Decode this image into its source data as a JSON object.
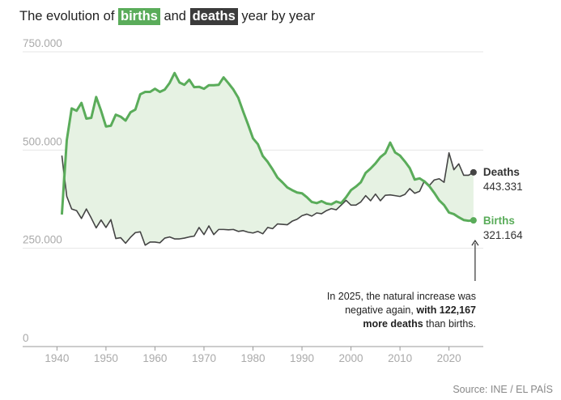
{
  "title": {
    "prefix": "The evolution of",
    "births_word": "births",
    "middle": "and",
    "deaths_word": "deaths",
    "suffix": "year by year"
  },
  "annotation": {
    "line1": "In 2025, the natural increase was",
    "line2_plain": "negative again,",
    "line2_bold": "with 122,167",
    "line3_bold": "more deaths",
    "line3_plain": "than births."
  },
  "source": "Source: INE / EL PAÍS",
  "colors": {
    "births": "#5aac5a",
    "deaths": "#444444",
    "fill": "#e6f2e3",
    "grid": "#e6e6e6",
    "axis": "#999999"
  },
  "chart_data": {
    "type": "line",
    "title": "The evolution of births and deaths year by year",
    "xlabel": "",
    "ylabel": "",
    "xlim": [
      1933,
      2027
    ],
    "ylim": [
      0,
      750000
    ],
    "y_ticks": [
      0,
      250000,
      500000,
      750000
    ],
    "y_tick_labels": [
      "0",
      "250.000",
      "500.000",
      "750.000"
    ],
    "x_ticks": [
      1940,
      1950,
      1960,
      1970,
      1980,
      1990,
      2000,
      2010,
      2020
    ],
    "x_tick_labels": [
      "1940",
      "1950",
      "1960",
      "1970",
      "1980",
      "1990",
      "2000",
      "2010",
      "2020"
    ],
    "x": [
      1941,
      1942,
      1943,
      1944,
      1945,
      1946,
      1947,
      1948,
      1949,
      1950,
      1951,
      1952,
      1953,
      1954,
      1955,
      1956,
      1957,
      1958,
      1959,
      1960,
      1961,
      1962,
      1963,
      1964,
      1965,
      1966,
      1967,
      1968,
      1969,
      1970,
      1971,
      1972,
      1973,
      1974,
      1975,
      1976,
      1977,
      1978,
      1979,
      1980,
      1981,
      1982,
      1983,
      1984,
      1985,
      1986,
      1987,
      1988,
      1989,
      1990,
      1991,
      1992,
      1993,
      1994,
      1995,
      1996,
      1997,
      1998,
      1999,
      2000,
      2001,
      2002,
      2003,
      2004,
      2005,
      2006,
      2007,
      2008,
      2009,
      2010,
      2011,
      2012,
      2013,
      2014,
      2015,
      2016,
      2017,
      2018,
      2019,
      2020,
      2021,
      2022,
      2023,
      2024,
      2025
    ],
    "series": [
      {
        "name": "Births",
        "last_label": "Births",
        "last_value_label": "321.164",
        "values": [
          336000,
          525000,
          606000,
          600000,
          620000,
          580000,
          582000,
          635000,
          600000,
          560000,
          562000,
          590000,
          585000,
          575000,
          596000,
          603000,
          642000,
          648000,
          648000,
          656000,
          648000,
          654000,
          671000,
          696000,
          672000,
          666000,
          679000,
          660000,
          661000,
          656000,
          665000,
          665000,
          666000,
          685000,
          670000,
          654000,
          633000,
          598000,
          565000,
          530000,
          515000,
          485000,
          470000,
          451000,
          430000,
          418000,
          405000,
          398000,
          392000,
          390000,
          380000,
          368000,
          365000,
          370000,
          364000,
          362000,
          369000,
          365000,
          380000,
          398000,
          407000,
          418000,
          442000,
          453000,
          466000,
          482000,
          492000,
          519000,
          494000,
          486000,
          471000,
          454000,
          425000,
          428000,
          420000,
          408000,
          391000,
          372000,
          360000,
          341000,
          337000,
          329000,
          322000,
          320000,
          321164
        ]
      },
      {
        "name": "Deaths",
        "last_label": "Deaths",
        "last_value_label": "443.331",
        "values": [
          486000,
          382000,
          350000,
          346000,
          326000,
          350000,
          327000,
          302000,
          322000,
          303000,
          323000,
          275000,
          277000,
          263000,
          278000,
          290000,
          292000,
          258000,
          266000,
          266000,
          264000,
          276000,
          279000,
          274000,
          274000,
          276000,
          279000,
          281000,
          303000,
          285000,
          307000,
          285000,
          298000,
          298000,
          297000,
          298000,
          293000,
          295000,
          291000,
          289000,
          293000,
          287000,
          303000,
          300000,
          312000,
          311000,
          310000,
          319000,
          324000,
          333000,
          337000,
          332000,
          340000,
          338000,
          346000,
          351000,
          348000,
          360000,
          372000,
          360000,
          360000,
          368000,
          384000,
          371000,
          388000,
          371000,
          385000,
          386000,
          384000,
          382000,
          387000,
          402000,
          390000,
          395000,
          422000,
          410000,
          424000,
          427000,
          418000,
          493000,
          450000,
          465000,
          436000,
          436000,
          443331
        ]
      }
    ]
  }
}
